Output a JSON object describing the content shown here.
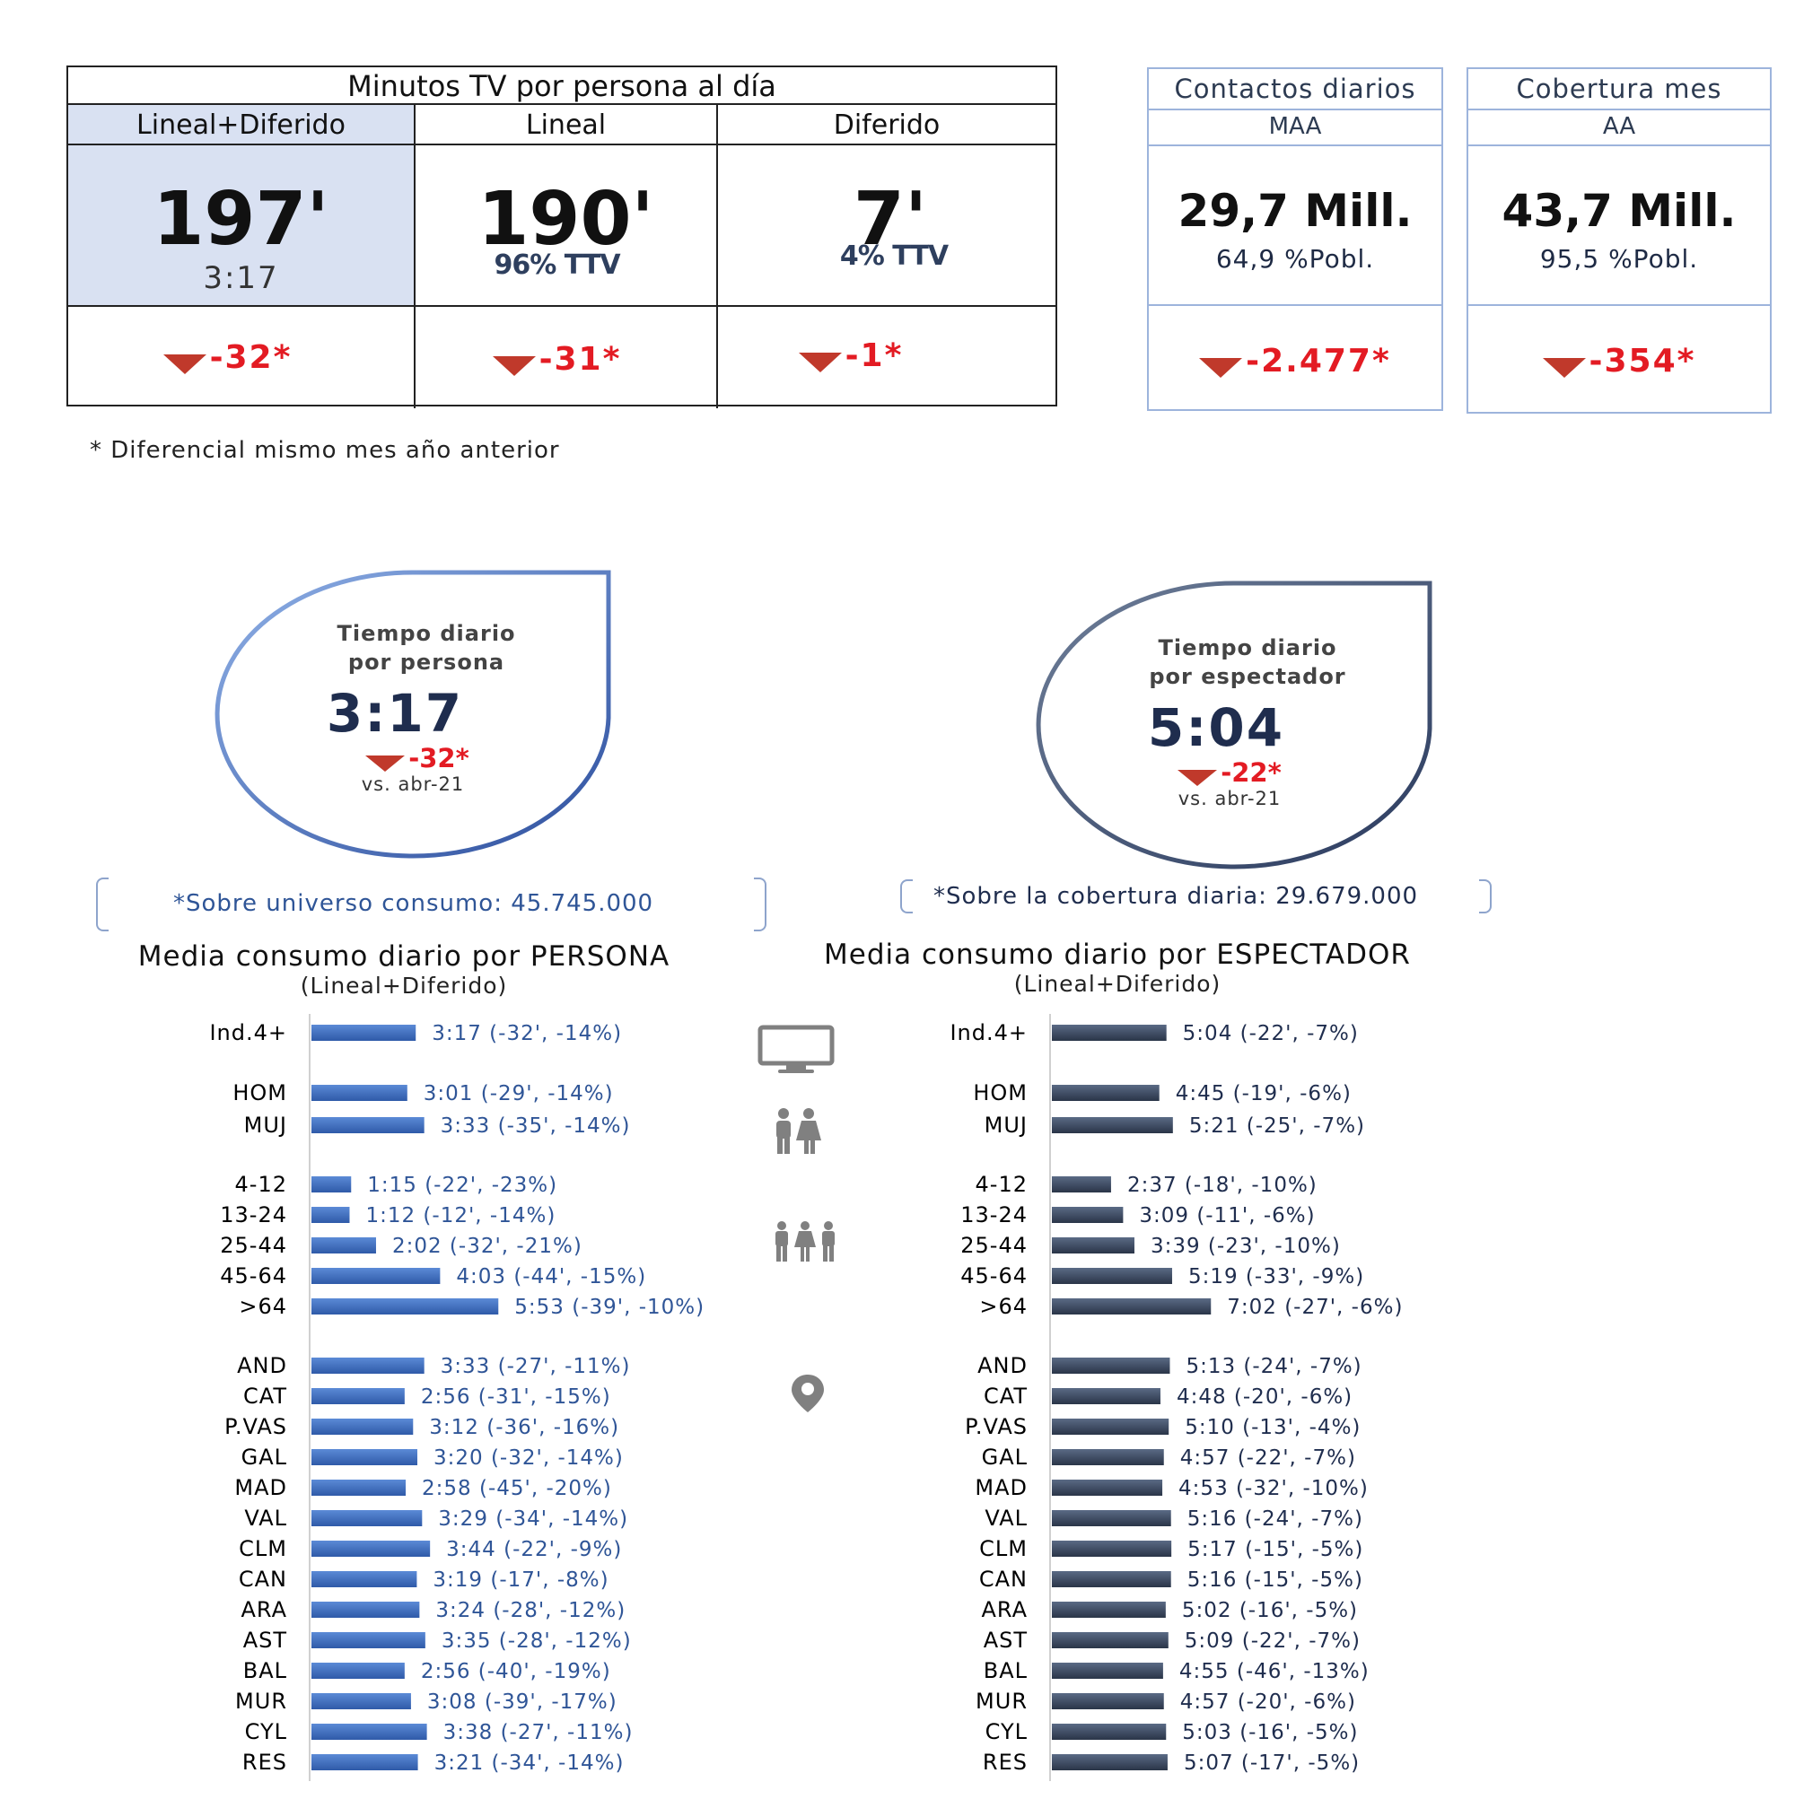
{
  "table": {
    "title": "Minutos TV por persona al día",
    "columns": [
      {
        "header": "Lineal+Diferido",
        "value": "197'",
        "sub": "3:17",
        "delta": "-32*"
      },
      {
        "header": "Lineal",
        "value": "190'",
        "sub": "96% TTV",
        "delta": "-31*"
      },
      {
        "header": "Diferido",
        "value": "7'",
        "sub": "4% TTV",
        "delta": "-1*"
      }
    ]
  },
  "contactos": {
    "title": "Contactos diarios",
    "subtitle": "MAA",
    "value": "29,7 Mill.",
    "pct": "64,9 %Pobl.",
    "delta": "-2.477*"
  },
  "cobertura": {
    "title": "Cobertura mes",
    "subtitle": "AA",
    "value": "43,7 Mill.",
    "pct": "95,5 %Pobl.",
    "delta": "-354*"
  },
  "footnote": "* Diferencial  mismo mes año anterior",
  "bubble_persona": {
    "line1": "Tiempo diario",
    "line2": "por persona",
    "value": "3:17",
    "delta": "-32*",
    "vs": "vs. abr-21"
  },
  "bubble_espectador": {
    "line1": "Tiempo diario",
    "line2": "por espectador",
    "value": "5:04",
    "delta": "-22*",
    "vs": "vs. abr-21"
  },
  "note_persona": "*Sobre universo consumo: 45.745.000",
  "note_espectador": "*Sobre la cobertura diaria: 29.679.000",
  "colors": {
    "persona_bar_dark": "#2f5aa8",
    "persona_bar_light": "#5b8ad6",
    "espectador_bar_dark": "#2a3548",
    "espectador_bar_light": "#5a6a85",
    "persona_label": "#2f5597",
    "espectador_label": "#1f2d4e",
    "delta_red": "#e31b23"
  },
  "icons": [
    "tv-icon",
    "couple-icon",
    "family-icon",
    "location-pin-icon"
  ],
  "chart_data": [
    {
      "type": "bar",
      "title": "Media consumo diario por PERSONA",
      "subtitle": "(Lineal+Diferido)",
      "unit": "minutes",
      "categories": [
        "Ind.4+",
        "HOM",
        "MUJ",
        "4-12",
        "13-24",
        "25-44",
        "45-64",
        ">64",
        "AND",
        "CAT",
        "P.VAS",
        "GAL",
        "MAD",
        "VAL",
        "CLM",
        "CAN",
        "ARA",
        "AST",
        "BAL",
        "MUR",
        "CYL",
        "RES"
      ],
      "values": [
        197,
        181,
        213,
        75,
        72,
        122,
        243,
        353,
        213,
        176,
        192,
        200,
        178,
        209,
        224,
        199,
        204,
        215,
        176,
        188,
        218,
        201
      ],
      "labels": [
        "3:17 (-32', -14%)",
        "3:01 (-29', -14%)",
        "3:33 (-35', -14%)",
        "1:15 (-22', -23%)",
        "1:12 (-12', -14%)",
        "2:02 (-32', -21%)",
        "4:03 (-44', -15%)",
        "5:53 (-39', -10%)",
        "3:33 (-27', -11%)",
        "2:56 (-31', -15%)",
        "3:12 (-36', -16%)",
        "3:20 (-32', -14%)",
        "2:58 (-45', -20%)",
        "3:29 (-34', -14%)",
        "3:44 (-22', -9%)",
        "3:19 (-17', -8%)",
        "3:24 (-28', -12%)",
        "3:35 (-28', -12%)",
        "2:56 (-40', -19%)",
        "3:08 (-39', -17%)",
        "3:38 (-27', -11%)",
        "3:21 (-34', -14%)"
      ]
    },
    {
      "type": "bar",
      "title": "Media consumo diario por ESPECTADOR",
      "subtitle": "(Lineal+Diferido)",
      "unit": "minutes",
      "categories": [
        "Ind.4+",
        "HOM",
        "MUJ",
        "4-12",
        "13-24",
        "25-44",
        "45-64",
        ">64",
        "AND",
        "CAT",
        "P.VAS",
        "GAL",
        "MAD",
        "VAL",
        "CLM",
        "CAN",
        "ARA",
        "AST",
        "BAL",
        "MUR",
        "CYL",
        "RES"
      ],
      "values": [
        304,
        285,
        321,
        157,
        189,
        219,
        319,
        422,
        313,
        288,
        310,
        297,
        293,
        316,
        317,
        316,
        302,
        309,
        295,
        297,
        303,
        307
      ],
      "labels": [
        "5:04 (-22', -7%)",
        "4:45 (-19', -6%)",
        "5:21 (-25', -7%)",
        "2:37 (-18', -10%)",
        "3:09 (-11', -6%)",
        "3:39 (-23', -10%)",
        "5:19 (-33', -9%)",
        "7:02 (-27', -6%)",
        "5:13 (-24', -7%)",
        "4:48 (-20', -6%)",
        "5:10 (-13', -4%)",
        "4:57 (-22', -7%)",
        "4:53 (-32', -10%)",
        "5:16 (-24', -7%)",
        "5:17 (-15', -5%)",
        "5:16 (-15', -5%)",
        "5:02 (-16', -5%)",
        "5:09 (-22', -7%)",
        "4:55 (-46', -13%)",
        "4:57 (-20', -6%)",
        "5:03 (-16', -5%)",
        "5:07 (-17', -5%)"
      ]
    }
  ]
}
